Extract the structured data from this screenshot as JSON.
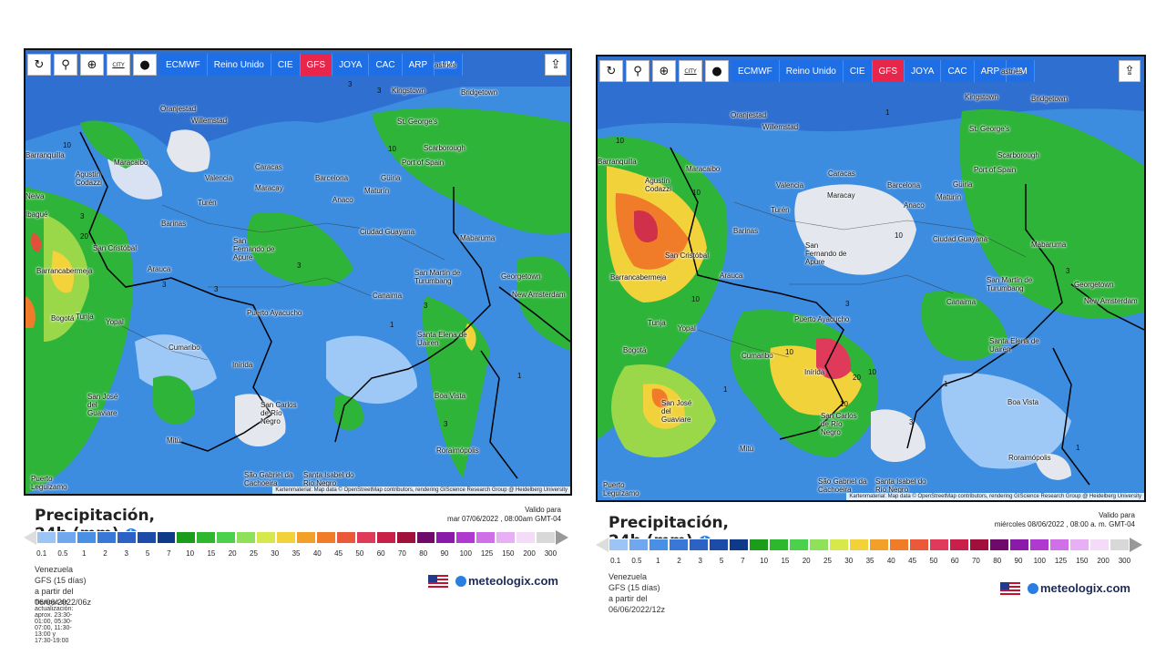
{
  "toolbar": {
    "icons": [
      "refresh-icon",
      "pin-icon",
      "zoom-icon",
      "city-icon",
      "dot-icon"
    ],
    "city_label": "CITY",
    "models": [
      "ECMWF",
      "Reino Unido",
      "CIE",
      "GFS",
      "JOYA",
      "CAC",
      "ARP",
      "UM"
    ],
    "active_model": "GFS"
  },
  "colors": {
    "model_button": "#1e6ee6",
    "active_button": "#e8254a",
    "info_icon": "#2a7de1"
  },
  "left": {
    "title": "Precipitación, 24h (mm)",
    "valid_label": "Valido para",
    "valid_date": "mar 07/06/2022 , 08:00am GMT-04",
    "region": "Venezuela",
    "run": "GFS (15 días) a partir del 06/06/2022/06z",
    "update_times": "Tiempos de actualización: aprox. 23:30-01:00, 05:30-07:00, 11:30-13:00 y 17:30-19:00",
    "attribution": "Kartenmaterial: Map data © OpenStreetMap contributors, rendering GIScience Research Group @ Heidelberg University",
    "places": [
      "astries",
      "Kingstown",
      "Bridgetown",
      "Oranjestad",
      "Willemstad",
      "St. George's",
      "Scarborough",
      "Barranquilla",
      "Maracaibo",
      "Port of Spain",
      "Agustín Codazzi",
      "Caracas",
      "Valencia",
      "Barcelona",
      "Güiria",
      "Maracay",
      "Maturín",
      "Turén",
      "Anaco",
      "Barinas",
      "Ciudad Guayana",
      "San Cristóbal",
      "San Fernando de Apure",
      "Mabaruma",
      "Georgetown",
      "Barrancabermeja",
      "Arauca",
      "San Martín de Turumbang",
      "New Amsterdam",
      "Canaima",
      "Tunja",
      "Yopal",
      "Puerto Ayacucho",
      "Bogotá",
      "Cumaribo",
      "Santa Elena de Uairen",
      "Inírida",
      "San José del Guaviare",
      "Boa Vista",
      "San Carlos de Río Negro",
      "Mitú",
      "Roraimópolis",
      "São Gabriel da Cachoeira",
      "Santa Isabel do Rio Negro",
      "Puerto Leguízamo",
      "Neiva",
      "Ibagué"
    ],
    "contour_labels": [
      "3",
      "3",
      "10",
      "10",
      "3",
      "20",
      "3",
      "3",
      "3",
      "3",
      "3",
      "1",
      "1",
      "1",
      "1",
      "10",
      "3",
      "3",
      "3",
      "10",
      "3",
      "3",
      "3"
    ]
  },
  "right": {
    "title": "Precipitación, 24h (mm)",
    "valid_label": "Valido para",
    "valid_date": "miércoles 08/06/2022 , 08:00 a. m. GMT-04",
    "region": "Venezuela",
    "run": "GFS (15 días) a partir del 06/06/2022/12z",
    "attribution": "Kartenmaterial: Map data © OpenStreetMap contributors, rendering GIScience Research Group @ Heidelberg University",
    "places": [
      "astries",
      "Kingstown",
      "Bridgetown",
      "Oranjestad",
      "Willemstad",
      "St. George's",
      "Scarborough",
      "Barranquilla",
      "Maracaibo",
      "Port of Spain",
      "Agustín Codazzi",
      "Caracas",
      "Valencia",
      "Barcelona",
      "Güiria",
      "Maracay",
      "Maturín",
      "Turén",
      "Anaco",
      "Barinas",
      "Ciudad Guayana",
      "San Cristóbal",
      "San Fernando de Apure",
      "Mabaruma",
      "Georgetown",
      "Barrancabermeja",
      "Arauca",
      "San Martín de Turumbang",
      "New Amsterdam",
      "Canaima",
      "Tunja",
      "Yopal",
      "Puerto Ayacucho",
      "Bogotá",
      "Cumaribo",
      "Santa Elena de Uairen",
      "Inírida",
      "San José del Guaviare",
      "Boa Vista",
      "San Carlos de Río Negro",
      "Mitú",
      "Roraimópolis",
      "São Gabriel da Cachoeira",
      "Santa Isabel do Rio Negro",
      "Puerto Leguízamo"
    ],
    "contour_labels": [
      "10",
      "10",
      "1",
      "10",
      "1",
      "1",
      "3",
      "10",
      "3",
      "10",
      "3",
      "10",
      "1",
      "3",
      "1",
      "20",
      "10",
      "20",
      "10",
      "1",
      "10",
      "3",
      "1",
      "3"
    ]
  },
  "legend": {
    "ticks": [
      "0.1",
      "0.5",
      "1",
      "2",
      "3",
      "5",
      "7",
      "10",
      "15",
      "20",
      "25",
      "30",
      "35",
      "40",
      "45",
      "50",
      "60",
      "70",
      "80",
      "90",
      "100",
      "125",
      "150",
      "200",
      "300"
    ],
    "colors": [
      "#9cc4f5",
      "#6fa8ee",
      "#4a8fe6",
      "#3a78d8",
      "#2b62c4",
      "#1c4ba8",
      "#0f3a88",
      "#1b9c1b",
      "#2db82d",
      "#4cd14c",
      "#8fe05a",
      "#d6e84a",
      "#f2d23a",
      "#f3a02a",
      "#f07c2a",
      "#ea5a3a",
      "#e03a5a",
      "#c82048",
      "#a0103a",
      "#6e0a6a",
      "#8a1aa8",
      "#b03ad0",
      "#d070e8",
      "#e8b0f4",
      "#f4dcf8",
      "#d8d8d8"
    ]
  },
  "brand": {
    "name": "meteologix.com"
  }
}
